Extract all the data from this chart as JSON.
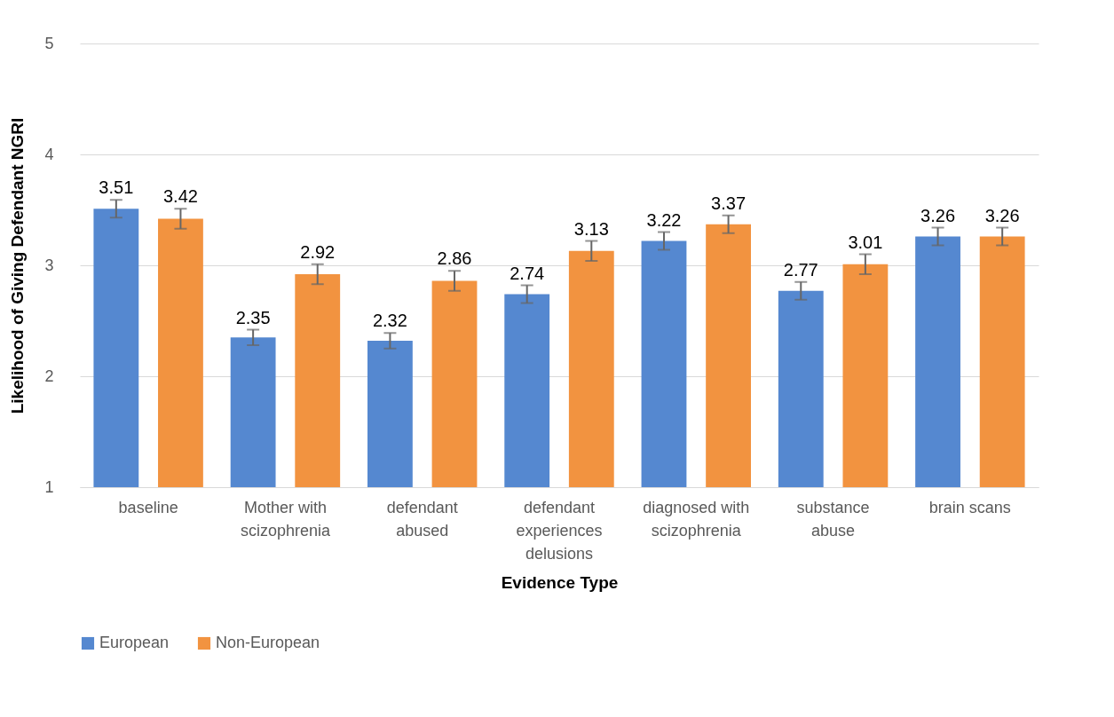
{
  "chart_data": {
    "type": "bar",
    "xlabel": "Evidence Type",
    "ylabel": "Likelihood of Giving Defendant NGRI",
    "categories": [
      "baseline",
      "Mother with scizophrenia",
      "defendant abused",
      "defendant experiences delusions",
      "diagnosed with scizophrenia",
      "substance abuse",
      "brain scans"
    ],
    "series": [
      {
        "name": "European",
        "color": "#5588d0",
        "values": [
          3.51,
          2.35,
          2.32,
          2.74,
          3.22,
          2.77,
          3.26
        ],
        "errors": [
          0.08,
          0.07,
          0.07,
          0.08,
          0.08,
          0.08,
          0.08
        ]
      },
      {
        "name": "Non-European",
        "color": "#f29340",
        "values": [
          3.42,
          2.92,
          2.86,
          3.13,
          3.37,
          3.01,
          3.26
        ],
        "errors": [
          0.09,
          0.09,
          0.09,
          0.09,
          0.08,
          0.09,
          0.08
        ]
      }
    ],
    "ylim": [
      1,
      5
    ],
    "yticks": [
      1,
      2,
      3,
      4,
      5
    ],
    "grid": "y",
    "legend": "bottom",
    "data_labels": true
  }
}
